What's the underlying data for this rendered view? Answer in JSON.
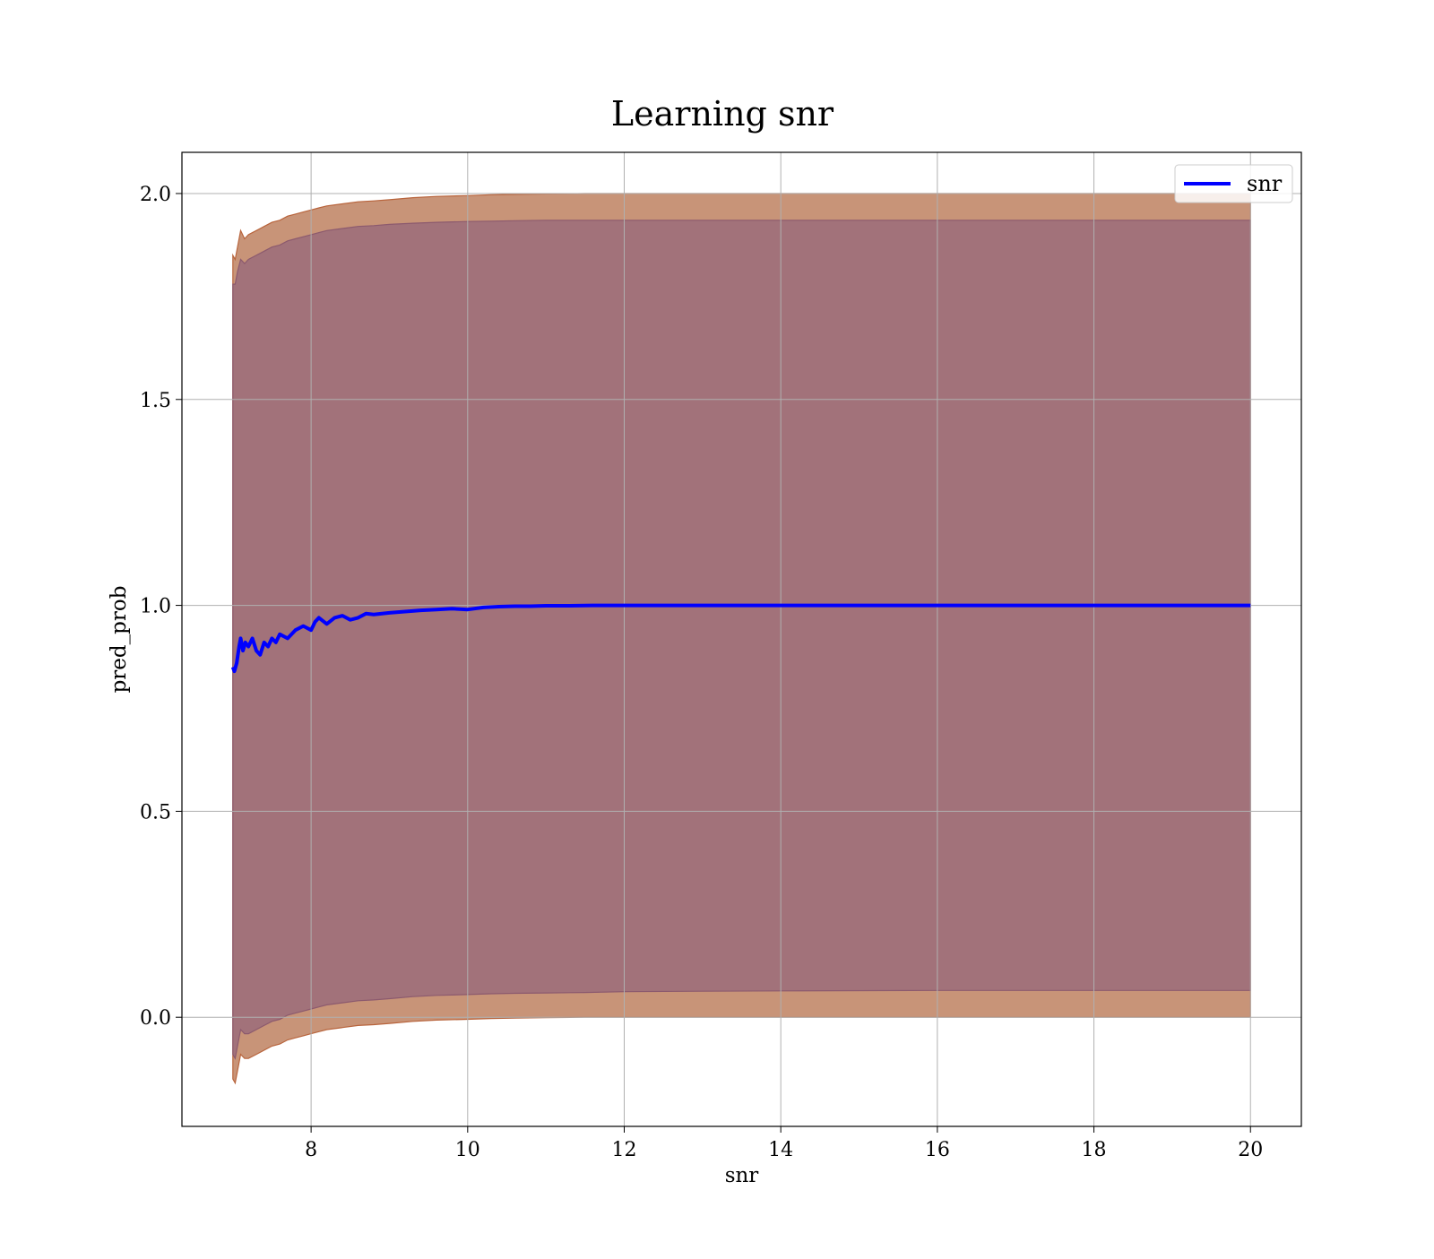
{
  "chart_data": {
    "type": "area",
    "title": "Learning snr",
    "xlabel": "snr",
    "ylabel": "pred_prob",
    "xlim": [
      6.35,
      20.65
    ],
    "ylim": [
      -0.265,
      2.1
    ],
    "grid": true,
    "legend": {
      "position": "top-right",
      "entries": [
        "snr"
      ]
    },
    "xticks": [
      8,
      10,
      12,
      14,
      16,
      18,
      20
    ],
    "yticks": [
      0.0,
      0.5,
      1.0,
      1.5,
      2.0
    ],
    "series": [
      {
        "name": "snr",
        "color": "#0000ff",
        "x": [
          7.0,
          7.02,
          7.05,
          7.08,
          7.1,
          7.13,
          7.16,
          7.2,
          7.25,
          7.3,
          7.35,
          7.4,
          7.45,
          7.5,
          7.55,
          7.6,
          7.7,
          7.8,
          7.9,
          8.0,
          8.05,
          8.1,
          8.2,
          8.3,
          8.4,
          8.5,
          8.6,
          8.7,
          8.8,
          9.0,
          9.2,
          9.4,
          9.6,
          9.8,
          10.0,
          10.2,
          10.4,
          10.6,
          10.8,
          11.0,
          11.3,
          11.6,
          12.0,
          12.5,
          13.0,
          14.0,
          15.0,
          16.0,
          17.0,
          18.0,
          19.0,
          20.0
        ],
        "values": [
          0.85,
          0.84,
          0.86,
          0.9,
          0.92,
          0.89,
          0.91,
          0.9,
          0.92,
          0.89,
          0.88,
          0.91,
          0.9,
          0.92,
          0.91,
          0.93,
          0.92,
          0.94,
          0.95,
          0.94,
          0.96,
          0.97,
          0.955,
          0.97,
          0.975,
          0.965,
          0.97,
          0.98,
          0.978,
          0.982,
          0.985,
          0.988,
          0.99,
          0.992,
          0.99,
          0.995,
          0.997,
          0.998,
          0.998,
          0.999,
          0.999,
          1.0,
          1.0,
          1.0,
          1.0,
          1.0,
          1.0,
          1.0,
          1.0,
          1.0,
          1.0,
          1.0
        ]
      }
    ],
    "bands": [
      {
        "color": "#c89478",
        "edge_color": "#b8643c",
        "x": [
          7.0,
          7.03,
          7.06,
          7.1,
          7.15,
          7.2,
          7.3,
          7.4,
          7.5,
          7.6,
          7.7,
          7.8,
          7.9,
          8.0,
          8.1,
          8.2,
          8.4,
          8.6,
          8.8,
          9.0,
          9.3,
          9.6,
          10.0,
          10.3,
          10.6,
          11.0,
          11.5,
          12.0,
          13.0,
          14.0,
          16.0,
          18.0,
          20.0
        ],
        "upper": [
          1.85,
          1.84,
          1.87,
          1.91,
          1.89,
          1.9,
          1.91,
          1.92,
          1.93,
          1.935,
          1.945,
          1.95,
          1.955,
          1.96,
          1.965,
          1.97,
          1.975,
          1.98,
          1.982,
          1.985,
          1.99,
          1.993,
          1.995,
          1.997,
          1.998,
          1.999,
          2.0,
          2.0,
          2.0,
          2.0,
          2.0,
          2.0,
          2.0
        ],
        "lower": [
          -0.15,
          -0.16,
          -0.13,
          -0.09,
          -0.1,
          -0.1,
          -0.09,
          -0.08,
          -0.07,
          -0.065,
          -0.055,
          -0.05,
          -0.045,
          -0.04,
          -0.035,
          -0.03,
          -0.025,
          -0.02,
          -0.018,
          -0.015,
          -0.01,
          -0.007,
          -0.005,
          -0.003,
          -0.002,
          -0.001,
          0.0,
          0.0,
          0.0,
          0.0,
          0.0,
          0.0,
          0.0
        ]
      },
      {
        "color": "#a2727a",
        "edge_color": "#8c5a6e",
        "x": [
          7.0,
          7.03,
          7.06,
          7.1,
          7.15,
          7.2,
          7.3,
          7.4,
          7.5,
          7.6,
          7.7,
          7.8,
          7.9,
          8.0,
          8.1,
          8.2,
          8.4,
          8.6,
          8.8,
          9.0,
          9.3,
          9.6,
          10.0,
          10.3,
          10.6,
          11.0,
          11.5,
          12.0,
          13.0,
          14.0,
          16.0,
          18.0,
          20.0
        ],
        "upper": [
          1.78,
          1.78,
          1.81,
          1.84,
          1.83,
          1.84,
          1.85,
          1.86,
          1.87,
          1.875,
          1.885,
          1.89,
          1.895,
          1.9,
          1.905,
          1.91,
          1.915,
          1.92,
          1.922,
          1.925,
          1.928,
          1.93,
          1.932,
          1.933,
          1.934,
          1.935,
          1.935,
          1.935,
          1.935,
          1.935,
          1.935,
          1.935,
          1.935
        ],
        "lower": [
          -0.09,
          -0.1,
          -0.07,
          -0.03,
          -0.04,
          -0.04,
          -0.03,
          -0.02,
          -0.01,
          -0.005,
          0.005,
          0.01,
          0.015,
          0.02,
          0.025,
          0.03,
          0.035,
          0.04,
          0.042,
          0.045,
          0.05,
          0.053,
          0.055,
          0.057,
          0.058,
          0.059,
          0.06,
          0.062,
          0.063,
          0.064,
          0.065,
          0.065,
          0.065
        ]
      }
    ]
  }
}
